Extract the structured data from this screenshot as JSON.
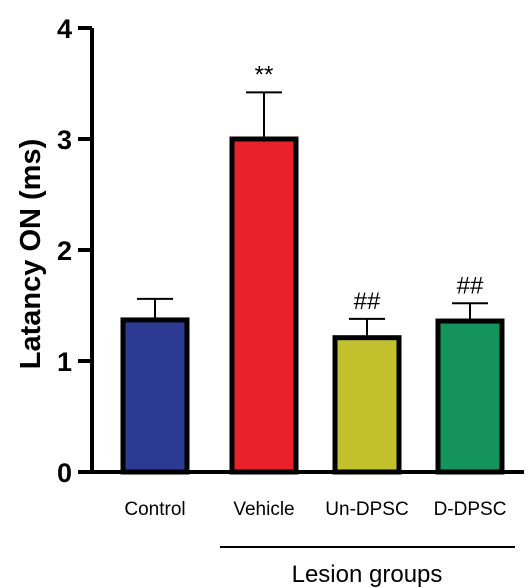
{
  "chart_data": {
    "type": "bar",
    "categories": [
      "Control",
      "Vehicle",
      "Un-DPSC",
      "D-DPSC"
    ],
    "values": [
      1.37,
      3.0,
      1.21,
      1.36
    ],
    "errors": [
      0.19,
      0.42,
      0.17,
      0.16
    ],
    "significance": [
      "",
      "**",
      "##",
      "##"
    ],
    "colors": [
      "#2b3a93",
      "#e8212b",
      "#c2c12d",
      "#14935a"
    ],
    "ylabel": "Latancy ON (ms)",
    "xlabel": "",
    "group_label": "Lesion groups",
    "ylim": [
      0,
      4
    ],
    "yticks": [
      0,
      1,
      2,
      3,
      4
    ],
    "grid": false,
    "legend": "none"
  }
}
